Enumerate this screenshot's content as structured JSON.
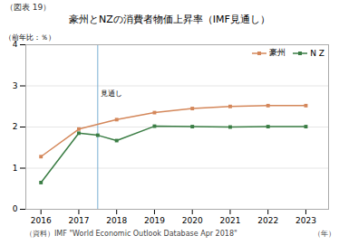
{
  "chart_data": {
    "type": "line",
    "title": "豪州とNZの消費者物価上昇率（IMF見通し）",
    "subtitle": "（図表 19）",
    "ylabel": "（前年比：％）",
    "xlabel": "（年）",
    "caption": "（資料）IMF \"World Economic Outlook Database  Apr 2018\"",
    "series": [
      {
        "name": "豪州",
        "color": "#d4875a",
        "marker": "square",
        "x": [
          2016,
          2017,
          2018,
          2019,
          2020,
          2021,
          2022,
          2023
        ],
        "values": [
          1.28,
          1.95,
          2.18,
          2.35,
          2.45,
          2.5,
          2.52,
          2.52
        ]
      },
      {
        "name": "N Z",
        "color": "#3a7d44",
        "marker": "square",
        "x": [
          2016,
          2017,
          2017.5,
          2018,
          2019,
          2020,
          2021,
          2022,
          2023
        ],
        "values": [
          0.65,
          1.85,
          1.8,
          1.67,
          2.02,
          2.01,
          2.0,
          2.01,
          2.01
        ]
      }
    ],
    "vline": {
      "x": 2017.5,
      "color": "#7bafd4"
    },
    "annotations": [
      {
        "text": "見通し",
        "x": 2017.5,
        "y": 2.82
      }
    ],
    "xlim": [
      2015.6,
      2023.6
    ],
    "xticks": [
      2016,
      2017,
      2018,
      2019,
      2020,
      2021,
      2022,
      2023
    ],
    "ylim": [
      0,
      4
    ],
    "yticks": [
      0,
      1,
      2,
      3,
      4
    ],
    "grid": "y",
    "legend": "upper right"
  }
}
